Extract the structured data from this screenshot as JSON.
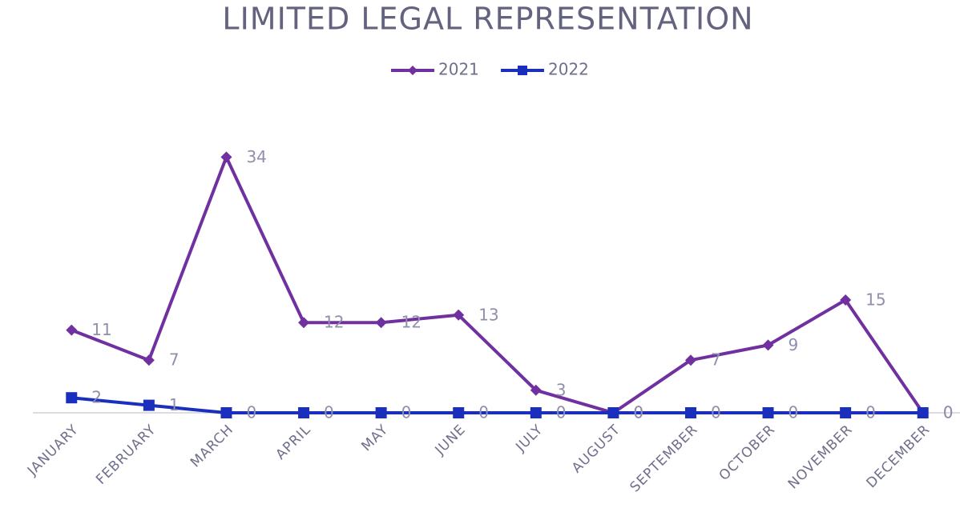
{
  "chart_data": {
    "type": "line",
    "title": "LIMITED LEGAL REPRESENTATION",
    "categories": [
      "JANUARY",
      "FEBRUARY",
      "MARCH",
      "APRIL",
      "MAY",
      "JUNE",
      "JULY",
      "AUGUST",
      "SEPTEMBER",
      "OCTOBER",
      "NOVEMBER",
      "DECEMBER"
    ],
    "series": [
      {
        "name": "2021",
        "color": "#7030a0",
        "marker": "diamond",
        "values": [
          11,
          7,
          34,
          12,
          12,
          13,
          3,
          0,
          7,
          9,
          15,
          0
        ]
      },
      {
        "name": "2022",
        "color": "#1a2fbd",
        "marker": "square",
        "values": [
          2,
          1,
          0,
          0,
          0,
          0,
          0,
          0,
          0,
          0,
          0,
          0
        ]
      }
    ],
    "ylim": [
      0,
      40
    ],
    "legend": "top",
    "data_labels": true
  }
}
